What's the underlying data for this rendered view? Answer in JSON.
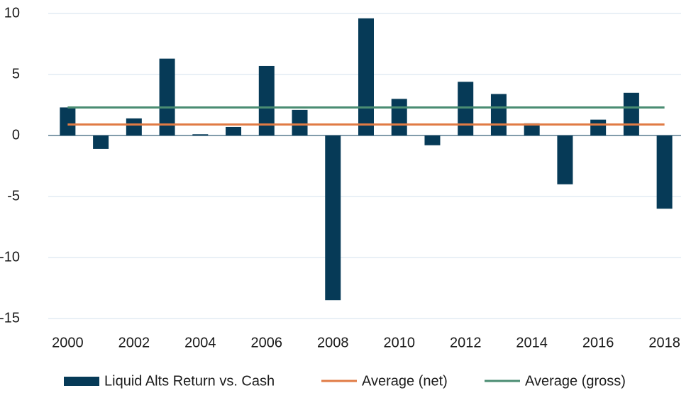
{
  "chart_data": {
    "type": "bar",
    "categories": [
      "2000",
      null,
      "2002",
      null,
      "2004",
      null,
      "2006",
      null,
      "2008",
      null,
      "2010",
      null,
      "2012",
      null,
      "2014",
      null,
      "2016",
      null,
      "2018"
    ],
    "series": [
      {
        "name": "Liquid Alts Return vs. Cash",
        "type": "bar",
        "color": "#063a57",
        "values": [
          2.3,
          -1.1,
          1.4,
          6.3,
          0.1,
          0.7,
          5.7,
          2.1,
          -13.5,
          9.6,
          3.0,
          -0.8,
          4.4,
          3.4,
          1.0,
          -4.0,
          1.3,
          3.5,
          -6.0
        ]
      },
      {
        "name": "Average (net)",
        "type": "line",
        "color": "#e07b45",
        "values": [
          0.9,
          0.9,
          0.9,
          0.9,
          0.9,
          0.9,
          0.9,
          0.9,
          0.9,
          0.9,
          0.9,
          0.9,
          0.9,
          0.9,
          0.9,
          0.9,
          0.9,
          0.9,
          0.9
        ]
      },
      {
        "name": "Average (gross)",
        "type": "line",
        "color": "#4a8c72",
        "values": [
          2.3,
          2.3,
          2.3,
          2.3,
          2.3,
          2.3,
          2.3,
          2.3,
          2.3,
          2.3,
          2.3,
          2.3,
          2.3,
          2.3,
          2.3,
          2.3,
          2.3,
          2.3,
          2.3
        ]
      }
    ],
    "ylim": [
      -15,
      10
    ],
    "yticks": [
      -15,
      -10,
      -5,
      0,
      5,
      10
    ],
    "grid": true,
    "legend": "bottom"
  }
}
